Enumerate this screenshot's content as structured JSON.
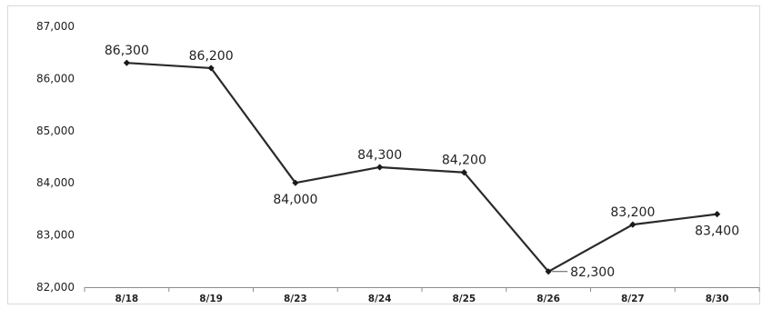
{
  "chart_data": {
    "type": "line",
    "categories": [
      "8/18",
      "8/19",
      "8/23",
      "8/24",
      "8/25",
      "8/26",
      "8/27",
      "8/30"
    ],
    "values": [
      86300,
      86200,
      84000,
      84300,
      84200,
      82300,
      83200,
      83400
    ],
    "value_labels": [
      "86,300",
      "86,200",
      "84,000",
      "84,300",
      "84,200",
      "82,300",
      "83,200",
      "83,400"
    ],
    "y_ticks": [
      82000,
      83000,
      84000,
      85000,
      86000,
      87000
    ],
    "y_tick_labels": [
      "82,000",
      "83,000",
      "84,000",
      "85,000",
      "86,000",
      "87,000"
    ],
    "ylim": [
      82000,
      87000
    ],
    "title": "",
    "xlabel": "",
    "ylabel": "",
    "grid": false,
    "legend": "none",
    "colors": {
      "line": "#2a2a2a",
      "marker": "#1a1a1a"
    }
  }
}
